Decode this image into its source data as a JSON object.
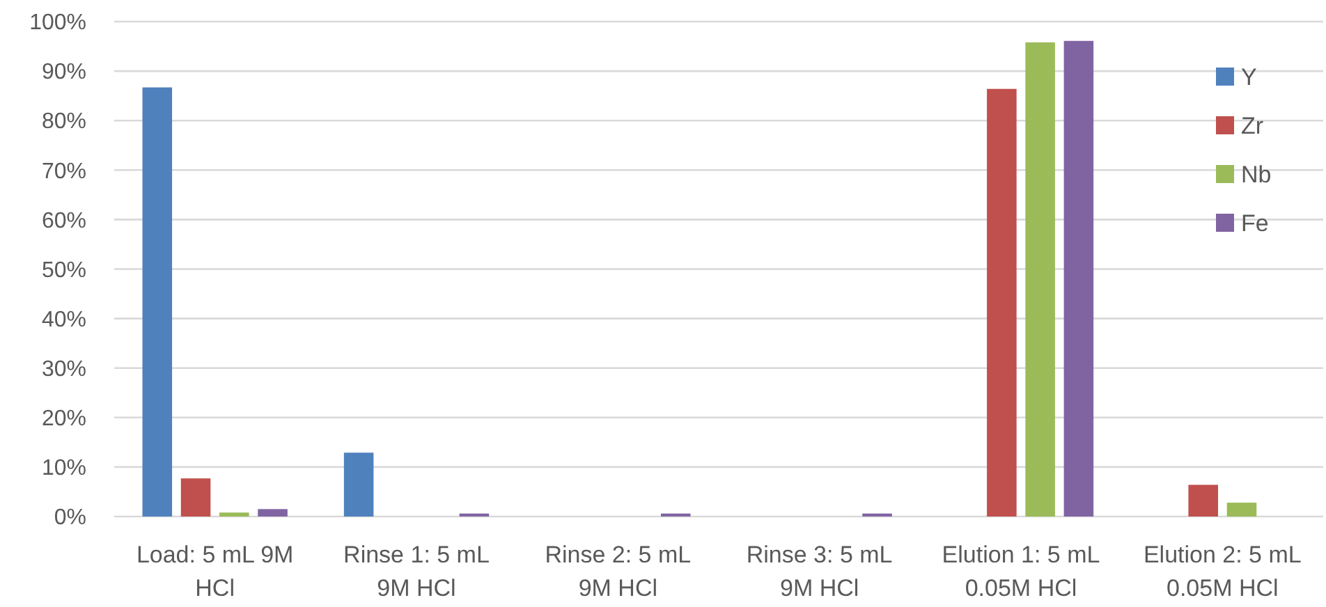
{
  "chart_data": {
    "type": "bar",
    "categories": [
      "Load: 5 mL 9M HCl",
      "Rinse 1: 5 mL 9M HCl",
      "Rinse 2: 5 mL 9M HCl",
      "Rinse 3: 5 mL 9M HCl",
      "Elution 1: 5 mL 0.05M HCl",
      "Elution 2: 5 mL 0.05M HCl"
    ],
    "series": [
      {
        "name": "Y",
        "color": "#4f81bd",
        "values": [
          86.7,
          12.9,
          0,
          0,
          0,
          0
        ]
      },
      {
        "name": "Zr",
        "color": "#c0504d",
        "values": [
          7.7,
          0,
          0,
          0,
          86.4,
          6.4
        ]
      },
      {
        "name": "Nb",
        "color": "#9bbb59",
        "values": [
          0.8,
          0,
          0,
          0,
          95.8,
          2.8
        ]
      },
      {
        "name": "Fe",
        "color": "#8064a2",
        "values": [
          1.5,
          0.6,
          0.6,
          0.6,
          96.1,
          0
        ]
      }
    ],
    "ylim": [
      0,
      100
    ],
    "yticks": [
      {
        "value": 0,
        "label": "0%"
      },
      {
        "value": 10,
        "label": "10%"
      },
      {
        "value": 20,
        "label": "20%"
      },
      {
        "value": 30,
        "label": "30%"
      },
      {
        "value": 40,
        "label": "40%"
      },
      {
        "value": 50,
        "label": "50%"
      },
      {
        "value": 60,
        "label": "60%"
      },
      {
        "value": 70,
        "label": "70%"
      },
      {
        "value": 80,
        "label": "80%"
      },
      {
        "value": 90,
        "label": "90%"
      },
      {
        "value": 100,
        "label": "100%"
      }
    ],
    "grid": "y",
    "legend": "top right"
  }
}
